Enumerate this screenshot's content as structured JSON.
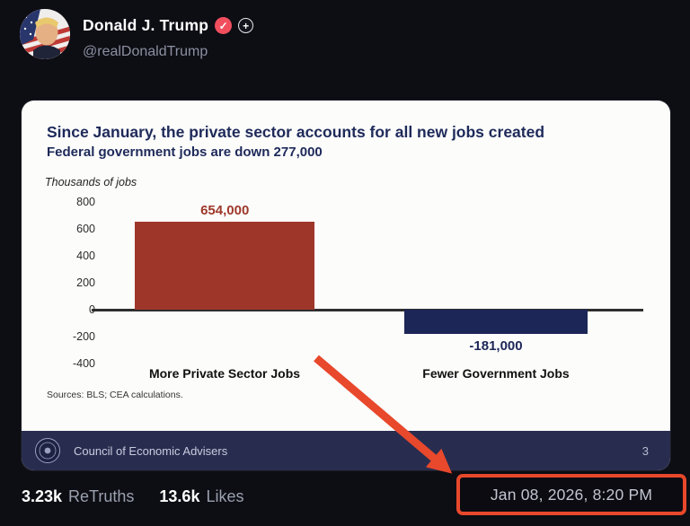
{
  "post": {
    "author": "Donald J. Trump",
    "handle": "@realDonaldTrump",
    "icons": {
      "verified": "✓",
      "plus": "+"
    },
    "stats": {
      "retruths_count": "3.23k",
      "retruths_label": "ReTruths",
      "likes_count": "13.6k",
      "likes_label": "Likes"
    },
    "timestamp": "Jan 08, 2026, 8:20 PM"
  },
  "slide": {
    "sources": "Sources: BLS; CEA calculations.",
    "footer_org": "Council of Economic Advisers",
    "page_number": "3"
  },
  "chart_data": {
    "type": "bar",
    "title": "Since January, the private sector accounts for all new jobs created",
    "subtitle": "Federal government jobs are down 277,000",
    "ylabel": "Thousands of jobs",
    "categories": [
      "More Private Sector Jobs",
      "Fewer Government Jobs"
    ],
    "values": [
      654,
      -181
    ],
    "data_labels": [
      "654,000",
      "-181,000"
    ],
    "yticks": [
      800,
      600,
      400,
      200,
      0,
      -200,
      -400
    ],
    "ylim": [
      -400,
      800
    ],
    "bar_colors": [
      "#9e372a",
      "#1c2657"
    ],
    "grid": false,
    "legend": false
  },
  "annotation": {
    "arrow_color": "#e8482b",
    "highlight_box_color": "#e8482b"
  }
}
